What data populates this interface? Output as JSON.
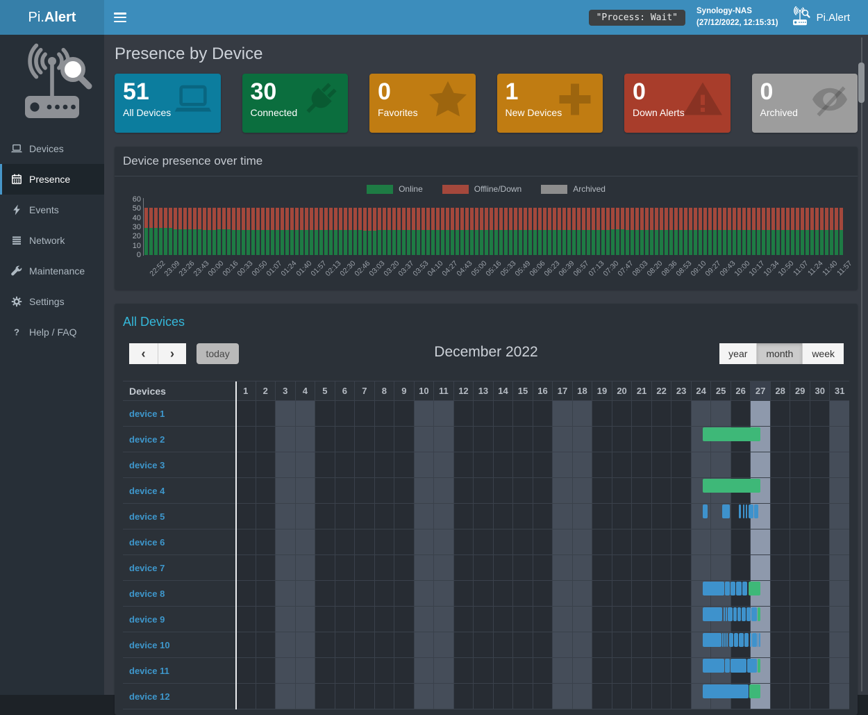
{
  "navbar": {
    "logo_pi": "Pi.",
    "logo_alert": "Alert",
    "process_badge": "\"Process: Wait\"",
    "host_name": "Synology-NAS",
    "host_time": "(27/12/2022, 12:15:31)",
    "brand_right": "Pi.Alert"
  },
  "sidebar": {
    "items": [
      {
        "label": "Devices",
        "icon": "laptop-icon",
        "active": false
      },
      {
        "label": "Presence",
        "icon": "calendar-icon",
        "active": true
      },
      {
        "label": "Events",
        "icon": "bolt-icon",
        "active": false
      },
      {
        "label": "Network",
        "icon": "network-icon",
        "active": false
      },
      {
        "label": "Maintenance",
        "icon": "wrench-icon",
        "active": false
      },
      {
        "label": "Settings",
        "icon": "gear-icon",
        "active": false
      },
      {
        "label": "Help / FAQ",
        "icon": "question-icon",
        "active": false
      }
    ]
  },
  "page": {
    "title": "Presence by Device"
  },
  "info_boxes": [
    {
      "value": "51",
      "label": "All Devices",
      "color": "#0c7d9e",
      "icon": "laptop-icon"
    },
    {
      "value": "30",
      "label": "Connected",
      "color": "#0b6e3e",
      "icon": "plug-icon"
    },
    {
      "value": "0",
      "label": "Favorites",
      "color": "#c07c12",
      "icon": "star-icon"
    },
    {
      "value": "1",
      "label": "New Devices",
      "color": "#c07c12",
      "icon": "plus-icon"
    },
    {
      "value": "0",
      "label": "Down Alerts",
      "color": "#a83d2b",
      "icon": "warning-icon"
    },
    {
      "value": "0",
      "label": "Archived",
      "color": "#9d9d9d",
      "icon": "eye-slash-icon"
    }
  ],
  "chart_panel": {
    "title": "Device presence over time"
  },
  "chart_data": {
    "type": "bar",
    "stacked": true,
    "title": "Device presence over time",
    "categories": [
      "22:52",
      "23:09",
      "23:26",
      "23:43",
      "00:00",
      "00:16",
      "00:33",
      "00:50",
      "01:07",
      "01:24",
      "01:40",
      "01:57",
      "02:13",
      "02:30",
      "02:46",
      "03:03",
      "03:20",
      "03:37",
      "03:53",
      "04:10",
      "04:27",
      "04:43",
      "05:00",
      "05:16",
      "05:33",
      "05:49",
      "06:06",
      "06:23",
      "06:39",
      "06:57",
      "07:13",
      "07:30",
      "07:47",
      "08:03",
      "08:20",
      "08:36",
      "08:53",
      "09:10",
      "09:27",
      "09:43",
      "10:00",
      "10:17",
      "10:34",
      "10:50",
      "11:07",
      "11:24",
      "11:40",
      "11:57"
    ],
    "series": [
      {
        "name": "Online",
        "color": "#1e7b44",
        "values": [
          29,
          29,
          28,
          28,
          27,
          28,
          27,
          27,
          27,
          27,
          27,
          27,
          27,
          27,
          27,
          26,
          27,
          27,
          27,
          27,
          27,
          27,
          27,
          27,
          27,
          27,
          27,
          27,
          27,
          27,
          27,
          27,
          28,
          27,
          27,
          27,
          27,
          27,
          27,
          27,
          27,
          27,
          27,
          27,
          27,
          27,
          27,
          27
        ]
      },
      {
        "name": "Offline/Down",
        "color": "#a4483c",
        "values": [
          22,
          22,
          23,
          23,
          24,
          23,
          24,
          24,
          24,
          24,
          24,
          24,
          24,
          24,
          24,
          25,
          24,
          24,
          24,
          24,
          24,
          24,
          24,
          24,
          24,
          24,
          24,
          24,
          24,
          24,
          24,
          24,
          23,
          24,
          24,
          24,
          24,
          24,
          24,
          24,
          24,
          24,
          24,
          24,
          24,
          24,
          24,
          24
        ]
      },
      {
        "name": "Archived",
        "color": "#8d8d8d",
        "values": [
          0,
          0,
          0,
          0,
          0,
          0,
          0,
          0,
          0,
          0,
          0,
          0,
          0,
          0,
          0,
          0,
          0,
          0,
          0,
          0,
          0,
          0,
          0,
          0,
          0,
          0,
          0,
          0,
          0,
          0,
          0,
          0,
          0,
          0,
          0,
          0,
          0,
          0,
          0,
          0,
          0,
          0,
          0,
          0,
          0,
          0,
          0,
          0
        ]
      }
    ],
    "ylim": [
      0,
      60
    ],
    "y_ticks": [
      60,
      50,
      40,
      30,
      20,
      10,
      0
    ],
    "legend_position": "top-center",
    "grid": false
  },
  "calendar": {
    "panel_title": "All Devices",
    "toolbar": {
      "prev_label": "‹",
      "next_label": "›",
      "today_label": "today",
      "title": "December 2022",
      "views": [
        "year",
        "month",
        "week"
      ],
      "active_view": "month"
    },
    "devices_header": "Devices",
    "day_labels": [
      1,
      2,
      3,
      4,
      5,
      6,
      7,
      8,
      9,
      10,
      11,
      12,
      13,
      14,
      15,
      16,
      17,
      18,
      19,
      20,
      21,
      22,
      23,
      24,
      25,
      26,
      27,
      28,
      29,
      30,
      31
    ],
    "weekend_days": [
      3,
      4,
      10,
      11,
      17,
      18,
      24,
      25,
      31
    ],
    "today_day": 27,
    "colors": {
      "session_blue": "#3e92cc",
      "current_green": "#3eb878",
      "weekend_bg": "#454d59",
      "today_bg": "#8e99ac"
    },
    "rows": [
      {
        "name": "device 1",
        "segments": []
      },
      {
        "name": "device 2",
        "segments": [
          {
            "start_day": 24.6,
            "end_day": 27.5,
            "type": "green"
          }
        ]
      },
      {
        "name": "device 3",
        "segments": []
      },
      {
        "name": "device 4",
        "segments": [
          {
            "start_day": 24.6,
            "end_day": 27.5,
            "type": "green"
          }
        ]
      },
      {
        "name": "device 5",
        "segments": [
          {
            "start_day": 24.6,
            "end_day": 24.85,
            "type": "blue"
          },
          {
            "start_day": 25.58,
            "end_day": 25.96,
            "type": "blue"
          },
          {
            "start_day": 26.42,
            "end_day": 26.53,
            "type": "blue"
          },
          {
            "start_day": 26.63,
            "end_day": 26.7,
            "type": "blue"
          },
          {
            "start_day": 26.78,
            "end_day": 26.84,
            "type": "blue"
          },
          {
            "start_day": 26.91,
            "end_day": 27.16,
            "type": "blue"
          },
          {
            "start_day": 27.2,
            "end_day": 27.42,
            "type": "blue"
          }
        ]
      },
      {
        "name": "device 6",
        "segments": []
      },
      {
        "name": "device 7",
        "segments": []
      },
      {
        "name": "device 8",
        "segments": [
          {
            "start_day": 24.6,
            "end_day": 25.68,
            "type": "blue"
          },
          {
            "start_day": 25.72,
            "end_day": 25.97,
            "type": "blue"
          },
          {
            "start_day": 26.01,
            "end_day": 26.26,
            "type": "blue"
          },
          {
            "start_day": 26.3,
            "end_day": 26.55,
            "type": "blue"
          },
          {
            "start_day": 26.59,
            "end_day": 26.85,
            "type": "blue"
          },
          {
            "start_day": 26.93,
            "end_day": 27.5,
            "type": "green"
          }
        ]
      },
      {
        "name": "device 9",
        "segments": [
          {
            "start_day": 24.6,
            "end_day": 25.6,
            "type": "blue"
          },
          {
            "start_day": 25.64,
            "end_day": 25.73,
            "type": "blue"
          },
          {
            "start_day": 25.77,
            "end_day": 25.82,
            "type": "blue"
          },
          {
            "start_day": 25.86,
            "end_day": 26.12,
            "type": "blue"
          },
          {
            "start_day": 26.16,
            "end_day": 26.32,
            "type": "blue"
          },
          {
            "start_day": 26.36,
            "end_day": 26.52,
            "type": "blue"
          },
          {
            "start_day": 26.56,
            "end_day": 26.77,
            "type": "blue"
          },
          {
            "start_day": 26.81,
            "end_day": 27.02,
            "type": "blue"
          },
          {
            "start_day": 27.06,
            "end_day": 27.32,
            "type": "blue"
          },
          {
            "start_day": 27.36,
            "end_day": 27.5,
            "type": "green"
          }
        ]
      },
      {
        "name": "device 10",
        "segments": [
          {
            "start_day": 24.6,
            "end_day": 25.55,
            "type": "blue"
          },
          {
            "start_day": 25.59,
            "end_day": 25.66,
            "type": "blue"
          },
          {
            "start_day": 25.7,
            "end_day": 25.77,
            "type": "blue"
          },
          {
            "start_day": 25.81,
            "end_day": 25.88,
            "type": "blue"
          },
          {
            "start_day": 25.92,
            "end_day": 26.13,
            "type": "blue"
          },
          {
            "start_day": 26.17,
            "end_day": 26.38,
            "type": "blue"
          },
          {
            "start_day": 26.42,
            "end_day": 26.68,
            "type": "blue"
          },
          {
            "start_day": 26.72,
            "end_day": 26.93,
            "type": "blue"
          },
          {
            "start_day": 26.97,
            "end_day": 27.04,
            "type": "blue"
          },
          {
            "start_day": 27.08,
            "end_day": 27.33,
            "type": "blue"
          },
          {
            "start_day": 27.37,
            "end_day": 27.41,
            "type": "blue"
          },
          {
            "start_day": 27.45,
            "end_day": 27.5,
            "type": "blue"
          }
        ]
      },
      {
        "name": "device 11",
        "segments": [
          {
            "start_day": 24.6,
            "end_day": 25.68,
            "type": "blue"
          },
          {
            "start_day": 25.72,
            "end_day": 25.97,
            "type": "blue"
          },
          {
            "start_day": 26.01,
            "end_day": 26.8,
            "type": "blue"
          },
          {
            "start_day": 26.84,
            "end_day": 27.32,
            "type": "blue"
          },
          {
            "start_day": 27.36,
            "end_day": 27.5,
            "type": "green"
          }
        ]
      },
      {
        "name": "device 12",
        "segments": [
          {
            "start_day": 24.6,
            "end_day": 26.9,
            "type": "blue"
          },
          {
            "start_day": 26.94,
            "end_day": 27.5,
            "type": "green"
          }
        ]
      }
    ]
  }
}
